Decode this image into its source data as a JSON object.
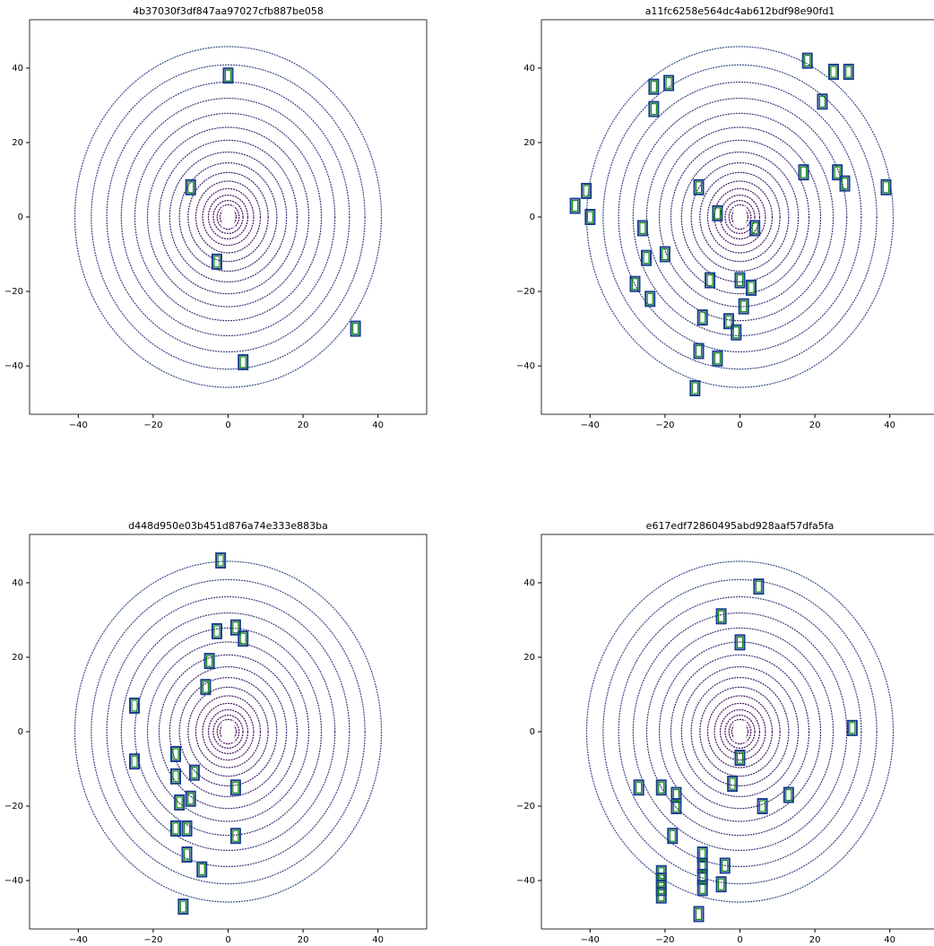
{
  "chart_data": [
    {
      "type": "scatter",
      "title": "4b37030f3df847aa97027cfb887be058",
      "xlim": [
        -53,
        53
      ],
      "ylim": [
        -53,
        53
      ],
      "xticks": [
        {
          "value": -40,
          "label": "−40"
        },
        {
          "value": -20,
          "label": "−20"
        },
        0,
        20,
        40
      ],
      "yticks": [
        {
          "value": -40,
          "label": "−40"
        },
        {
          "value": -20,
          "label": "−20"
        },
        0,
        20,
        40
      ],
      "color": "#1a3d8f",
      "x": [
        0,
        34,
        4,
        -3,
        -10
      ],
      "y": [
        38,
        -30,
        -39,
        -12,
        8
      ]
    },
    {
      "type": "scatter",
      "title": "a11fc6258e564dc4ab612bdf98e90fd1",
      "xlim": [
        -53,
        53
      ],
      "ylim": [
        -53,
        53
      ],
      "xticks": [
        {
          "value": -40,
          "label": "−40"
        },
        {
          "value": -20,
          "label": "−20"
        },
        0,
        20,
        40
      ],
      "yticks": [
        {
          "value": -40,
          "label": "−40"
        },
        {
          "value": -20,
          "label": "−20"
        },
        0,
        20,
        40
      ],
      "color": "#1a3d8f",
      "x": [
        -41,
        -44,
        -40,
        -23,
        -19,
        -23,
        -20,
        -25,
        -28,
        -24,
        -11,
        -6,
        -26,
        -8,
        0,
        3,
        -10,
        -3,
        1,
        -11,
        -6,
        -1,
        -12,
        4,
        18,
        25,
        29,
        22,
        26,
        28,
        39,
        17
      ],
      "y": [
        7,
        3,
        0,
        35,
        36,
        29,
        -10,
        -11,
        -18,
        -22,
        8,
        1,
        -3,
        -17,
        -17,
        -19,
        -27,
        -28,
        -24,
        -36,
        -38,
        -31,
        -46,
        -3,
        42,
        39,
        39,
        31,
        12,
        9,
        8,
        12
      ]
    },
    {
      "type": "scatter",
      "title": "d448d950e03b451d876a74e333e883ba",
      "xlim": [
        -53,
        53
      ],
      "ylim": [
        -53,
        53
      ],
      "xticks": [
        {
          "value": -40,
          "label": "−40"
        },
        {
          "value": -20,
          "label": "−20"
        },
        0,
        20,
        40
      ],
      "yticks": [
        {
          "value": -40,
          "label": "−40"
        },
        {
          "value": -20,
          "label": "−20"
        },
        0,
        20,
        40
      ],
      "color": "#1a3d8f",
      "x": [
        -2,
        -3,
        -5,
        -6,
        2,
        4,
        -25,
        -25,
        -14,
        -14,
        -9,
        -13,
        -10,
        -14,
        -11,
        -11,
        -7,
        -12,
        2,
        2
      ],
      "y": [
        46,
        27,
        19,
        12,
        28,
        25,
        7,
        -8,
        -6,
        -12,
        -11,
        -19,
        -18,
        -26,
        -26,
        -33,
        -37,
        -47,
        -28,
        -15
      ]
    },
    {
      "type": "scatter",
      "title": "e617edf72860495abd928aaf57dfa5fa",
      "xlim": [
        -53,
        53
      ],
      "ylim": [
        -53,
        53
      ],
      "xticks": [
        {
          "value": -40,
          "label": "−40"
        },
        {
          "value": -20,
          "label": "−20"
        },
        0,
        20,
        40
      ],
      "yticks": [
        {
          "value": -40,
          "label": "−40"
        },
        {
          "value": -20,
          "label": "−20"
        },
        0,
        20,
        40
      ],
      "color": "#1a3d8f",
      "x": [
        5,
        -5,
        0,
        0,
        -2,
        6,
        -27,
        -21,
        -17,
        -17,
        -18,
        -10,
        -10,
        -4,
        -10,
        -5,
        -10,
        -21,
        -21,
        -21,
        -21,
        -11,
        30,
        13
      ],
      "y": [
        39,
        31,
        24,
        -7,
        -14,
        -20,
        -15,
        -15,
        -17,
        -20,
        -28,
        -33,
        -36,
        -36,
        -39,
        -41,
        -42,
        -38,
        -40,
        -42,
        -44,
        -49,
        1,
        -17
      ]
    }
  ]
}
